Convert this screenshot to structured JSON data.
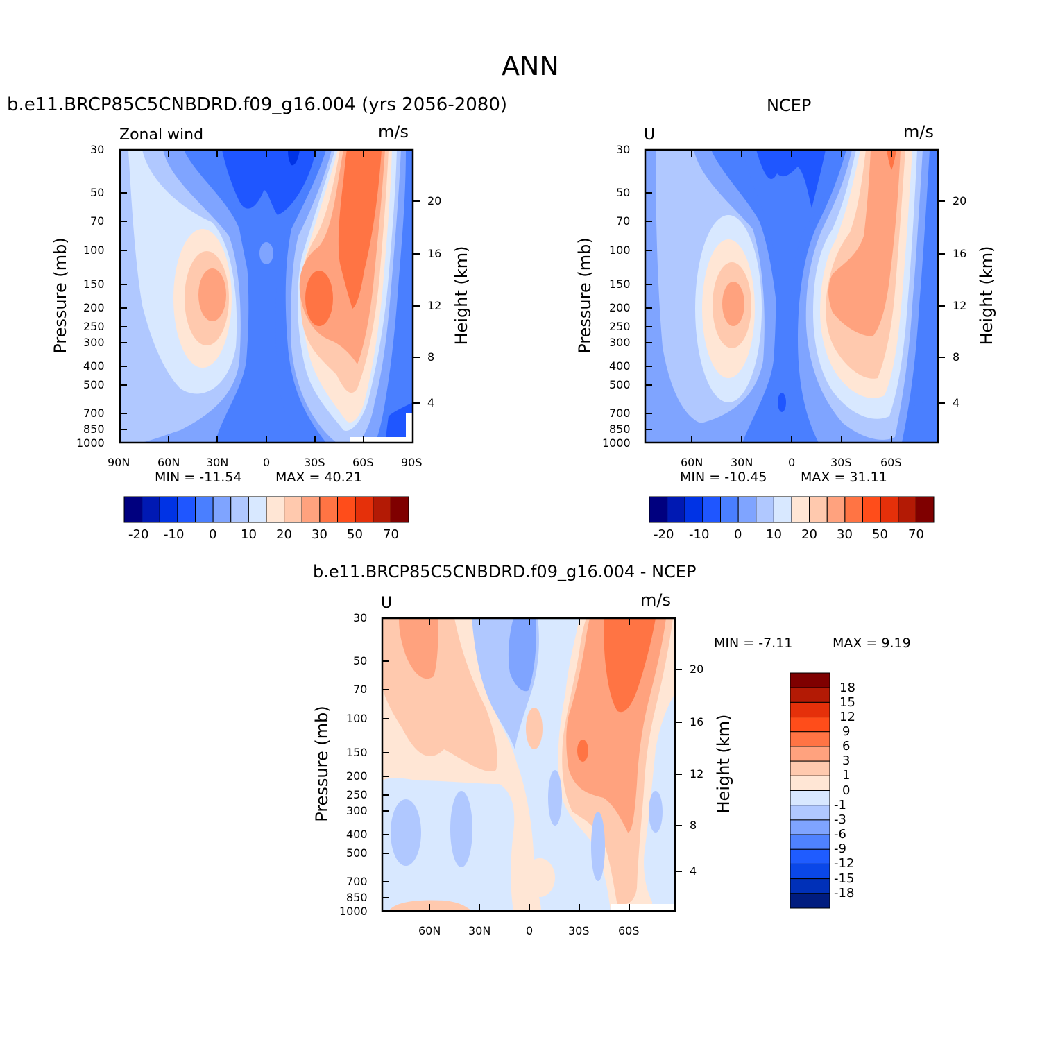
{
  "page": {
    "title": "ANN",
    "panel1_title": "b.e11.BRCP85C5CNBDRD.f09_g16.004 (yrs 2056-2080)",
    "panel2_title": "NCEP",
    "panel3_title": "b.e11.BRCP85C5CNBDRD.f09_g16.004 - NCEP"
  },
  "colors": {
    "panel_scale": [
      "#00007f",
      "#0019b3",
      "#0033e5",
      "#1f56ff",
      "#4a7fff",
      "#7fa4ff",
      "#b0c8ff",
      "#d8e8ff",
      "#ffe6d5",
      "#ffc9ae",
      "#ffa27e",
      "#ff7444",
      "#ff4d1a",
      "#e5300a",
      "#b31a05",
      "#7f0000"
    ],
    "diff_scale": [
      "#001c7f",
      "#0030b8",
      "#0a47e8",
      "#1f5cff",
      "#4f82ff",
      "#7fa4ff",
      "#b0c8ff",
      "#d8e8ff",
      "#ffe6d5",
      "#ffc9ae",
      "#ffa27e",
      "#ff7444",
      "#ff4d1a",
      "#e5300a",
      "#b31a05",
      "#7f0000"
    ]
  },
  "chart_data": [
    {
      "type": "contour",
      "title": "b.e11.BRCP85C5CNBDRD.f09_g16.004 (yrs 2056-2080)",
      "left_label": "Zonal wind",
      "right_label": "m/s",
      "xlabel": "",
      "ylabel": "Pressure (mb)",
      "y2label": "Height (km)",
      "x_ticks": [
        "90N",
        "60N",
        "30N",
        "0",
        "30S",
        "60S",
        "90S"
      ],
      "y_ticks": [
        30,
        50,
        70,
        100,
        150,
        200,
        250,
        300,
        400,
        500,
        700,
        850,
        1000
      ],
      "y2_ticks": [
        20,
        16,
        12,
        8,
        4
      ],
      "min_text": "MIN = -11.54",
      "max_text": "MAX = 40.21",
      "colorbar_labels": [
        "-20",
        "-10",
        "0",
        "10",
        "20",
        "30",
        "50",
        "70"
      ]
    },
    {
      "type": "contour",
      "title": "NCEP",
      "left_label": "U",
      "right_label": "m/s",
      "xlabel": "",
      "ylabel": "Pressure (mb)",
      "y2label": "Height (km)",
      "x_ticks": [
        "60N",
        "30N",
        "0",
        "30S",
        "60S"
      ],
      "y_ticks": [
        30,
        50,
        70,
        100,
        150,
        200,
        250,
        300,
        400,
        500,
        700,
        850,
        1000
      ],
      "y2_ticks": [
        20,
        16,
        12,
        8,
        4
      ],
      "min_text": "MIN = -10.45",
      "max_text": "MAX = 31.11",
      "colorbar_labels": [
        "-20",
        "-10",
        "0",
        "10",
        "20",
        "30",
        "50",
        "70"
      ]
    },
    {
      "type": "contour",
      "title": "b.e11.BRCP85C5CNBDRD.f09_g16.004 - NCEP",
      "left_label": "U",
      "right_label": "m/s",
      "xlabel": "",
      "ylabel": "Pressure (mb)",
      "y2label": "Height (km)",
      "x_ticks": [
        "60N",
        "30N",
        "0",
        "30S",
        "60S"
      ],
      "y_ticks": [
        30,
        50,
        70,
        100,
        150,
        200,
        250,
        300,
        400,
        500,
        700,
        850,
        1000
      ],
      "y2_ticks": [
        20,
        16,
        12,
        8,
        4
      ],
      "min_text": "MIN = -7.11",
      "max_text": "MAX = 9.19",
      "colorbar_labels": [
        "18",
        "15",
        "12",
        "9",
        "6",
        "3",
        "1",
        "0",
        "-1",
        "-3",
        "-6",
        "-9",
        "-12",
        "-15",
        "-18"
      ]
    }
  ]
}
